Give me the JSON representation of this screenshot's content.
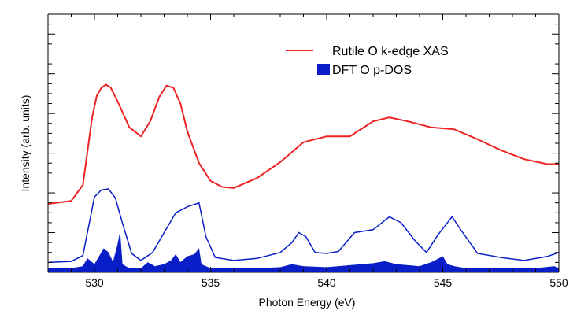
{
  "chart_data": {
    "type": "line",
    "title": "",
    "xlabel": "Photon Energy (eV)",
    "ylabel": "Intensity (arb. units)",
    "xlim": [
      528,
      550
    ],
    "ylim": [
      0,
      13
    ],
    "x_ticks": [
      530,
      535,
      540,
      545,
      550
    ],
    "x_tick_labels": [
      "530",
      "535",
      "540",
      "545",
      "550"
    ],
    "y_tick_labels_shown": false,
    "grid": false,
    "legend_position": "top-right",
    "colors": {
      "xas": "#ee2222",
      "dos": "#0a1ec8"
    },
    "series": [
      {
        "name": "Rutile O k-edge XAS",
        "kind": "line",
        "x": [
          528,
          529,
          529.5,
          529.9,
          530.1,
          530.3,
          530.5,
          530.7,
          531.0,
          531.5,
          532.0,
          532.4,
          532.8,
          533.1,
          533.4,
          533.7,
          534.0,
          534.5,
          535.0,
          535.5,
          536.0,
          537.0,
          538.0,
          538.5,
          539.0,
          540.0,
          541.0,
          542.0,
          542.7,
          543.5,
          544.5,
          545.5,
          546.5,
          547.5,
          548.5,
          549.5,
          550
        ],
        "y": [
          3.45,
          3.6,
          4.4,
          7.8,
          8.9,
          9.3,
          9.45,
          9.3,
          8.6,
          7.3,
          6.85,
          7.6,
          8.85,
          9.4,
          9.3,
          8.5,
          7.1,
          5.5,
          4.6,
          4.3,
          4.25,
          4.75,
          5.55,
          6.05,
          6.55,
          6.85,
          6.85,
          7.6,
          7.8,
          7.6,
          7.3,
          7.2,
          6.7,
          6.15,
          5.7,
          5.45,
          5.45
        ]
      },
      {
        "name": "",
        "kind": "line",
        "x": [
          528,
          529,
          529.5,
          530.0,
          530.3,
          530.6,
          530.9,
          531.2,
          531.6,
          532.0,
          532.5,
          533.0,
          533.5,
          534.0,
          534.5,
          534.8,
          535.2,
          536.0,
          537.0,
          538.0,
          538.5,
          538.8,
          539.1,
          539.5,
          540.0,
          540.5,
          541.2,
          542.0,
          542.7,
          543.2,
          543.8,
          544.3,
          544.8,
          545.4,
          545.8,
          546.5,
          547.5,
          548.5,
          549.5,
          550
        ],
        "y": [
          0.5,
          0.55,
          0.85,
          3.8,
          4.15,
          4.2,
          3.75,
          2.5,
          0.95,
          0.6,
          1.0,
          2.0,
          3.0,
          3.3,
          3.5,
          1.8,
          0.75,
          0.6,
          0.7,
          1.0,
          1.5,
          2.0,
          1.8,
          1.0,
          0.95,
          1.05,
          2.0,
          2.15,
          2.8,
          2.5,
          1.6,
          1.0,
          1.9,
          2.8,
          2.1,
          0.95,
          0.75,
          0.6,
          0.8,
          1.0
        ]
      },
      {
        "name": "DFT O p-DOS",
        "kind": "area",
        "x": [
          528,
          529.0,
          529.5,
          529.7,
          530.0,
          530.2,
          530.4,
          530.6,
          530.8,
          531.0,
          531.1,
          531.2,
          531.5,
          532.0,
          532.3,
          532.6,
          533.0,
          533.3,
          533.5,
          533.7,
          534.0,
          534.3,
          534.5,
          534.6,
          535.0,
          537.0,
          538.0,
          538.5,
          539.0,
          540.0,
          541.0,
          542.0,
          542.5,
          543.0,
          544.0,
          544.5,
          545.0,
          545.2,
          545.5,
          546.0,
          547.0,
          548.0,
          549.0,
          549.8,
          550
        ],
        "y": [
          0.2,
          0.2,
          0.3,
          0.7,
          0.4,
          0.8,
          1.2,
          1.0,
          0.5,
          1.4,
          2.0,
          0.4,
          0.2,
          0.2,
          0.5,
          0.3,
          0.4,
          0.6,
          0.9,
          0.5,
          0.8,
          0.9,
          1.2,
          0.4,
          0.2,
          0.2,
          0.25,
          0.4,
          0.3,
          0.25,
          0.35,
          0.45,
          0.55,
          0.4,
          0.3,
          0.5,
          0.8,
          0.4,
          0.3,
          0.2,
          0.2,
          0.2,
          0.2,
          0.3,
          0.2
        ]
      }
    ]
  }
}
